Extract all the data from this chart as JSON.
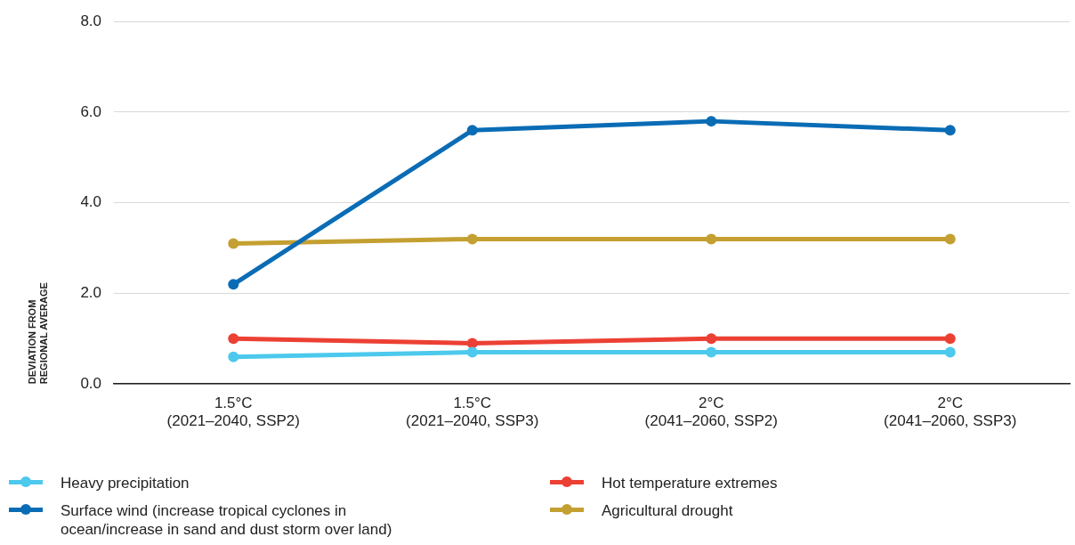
{
  "chart_data": {
    "type": "line",
    "ylabel": "DEVIATION FROM REGIONAL AVERAGE",
    "categories": [
      "1.5°C\n(2021–2040, SSP2)",
      "1.5°C\n(2021–2040, SSP3)",
      "2°C\n(2041–2060, SSP2)",
      "2°C\n(2041–2060, SSP3)"
    ],
    "series": [
      {
        "name": "Heavy precipitation",
        "color": "#4cc9ec",
        "values": [
          0.6,
          0.7,
          0.7,
          0.7
        ]
      },
      {
        "name": "Hot temperature extremes",
        "color": "#ec4034",
        "values": [
          1.0,
          0.9,
          1.0,
          1.0
        ]
      },
      {
        "name": "Surface wind (increase tropical cyclones in ocean/increase in sand and dust storm over land)",
        "color": "#0a6cb5",
        "values": [
          2.2,
          5.6,
          5.8,
          5.6
        ]
      },
      {
        "name": "Agricultural drought",
        "color": "#c4a032",
        "values": [
          3.1,
          3.2,
          3.2,
          3.2
        ]
      }
    ],
    "ylim": [
      0,
      8
    ],
    "yticks": [
      {
        "value": 0,
        "label": "0.0"
      },
      {
        "value": 2,
        "label": "2.0"
      },
      {
        "value": 4,
        "label": "4.0"
      },
      {
        "value": 6,
        "label": "6.0"
      },
      {
        "value": 8,
        "label": "8.0"
      }
    ],
    "grid": "y",
    "legend": "bottom",
    "marker": "circle",
    "line_style": "solid"
  }
}
